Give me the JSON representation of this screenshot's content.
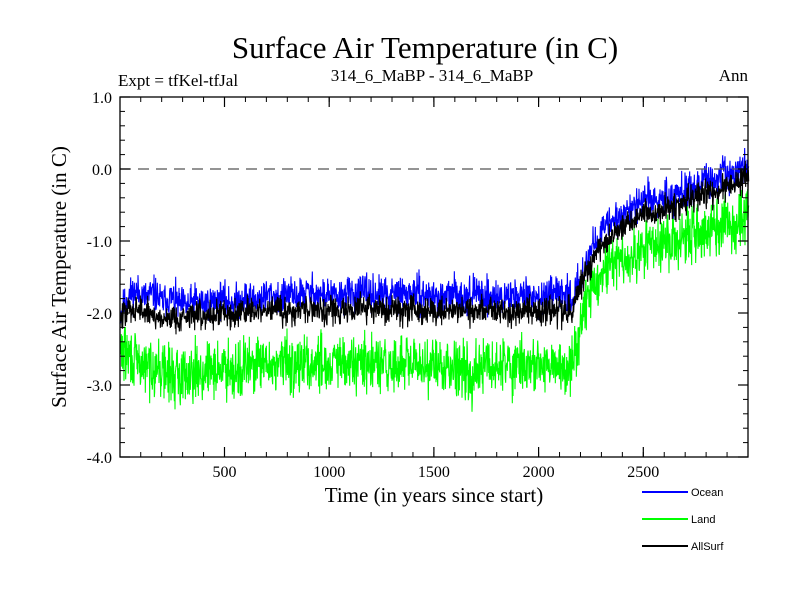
{
  "chart_data": {
    "type": "line",
    "title": "Surface Air Temperature (in C)",
    "header_left": "Expt = tfKel-tfJal",
    "header_center": "314_6_MaBP - 314_6_MaBP",
    "header_right": "Ann",
    "xlabel": "Time (in years since start)",
    "ylabel": "Surface Air Temperature (in C)",
    "xlim": [
      1,
      3000
    ],
    "ylim": [
      -4.0,
      1.0
    ],
    "xticks": [
      500,
      1000,
      1500,
      2000,
      2500
    ],
    "xtick_labels": [
      "500",
      "1000",
      "1500",
      "2000",
      "2500"
    ],
    "yticks": [
      -4.0,
      -3.0,
      -2.0,
      -1.0,
      0.0,
      1.0
    ],
    "ytick_labels": [
      "-4.0",
      "-3.0",
      "-2.0",
      "-1.0",
      "0.0",
      "1.0"
    ],
    "reference_line": 0.0,
    "grid": false,
    "legend_position": "bottom-right, below plot",
    "x_step": 40,
    "series": [
      {
        "name": "Ocean",
        "color": "#0000ff",
        "values": [
          -2.0,
          -1.75,
          -1.7,
          -1.78,
          -1.72,
          -1.85,
          -1.78,
          -1.88,
          -1.9,
          -1.82,
          -1.88,
          -1.85,
          -1.8,
          -1.86,
          -1.84,
          -1.78,
          -1.82,
          -1.78,
          -1.74,
          -1.8,
          -1.75,
          -1.77,
          -1.72,
          -1.7,
          -1.76,
          -1.74,
          -1.8,
          -1.72,
          -1.76,
          -1.7,
          -1.75,
          -1.73,
          -1.78,
          -1.72,
          -1.74,
          -1.7,
          -1.76,
          -1.75,
          -1.8,
          -1.78,
          -1.72,
          -1.76,
          -1.74,
          -1.72,
          -1.76,
          -1.78,
          -1.8,
          -1.74,
          -1.76,
          -1.75,
          -1.78,
          -1.8,
          -1.76,
          -1.7,
          -1.8,
          -1.48,
          -1.2,
          -0.92,
          -0.82,
          -0.7,
          -0.62,
          -0.55,
          -0.48,
          -0.4,
          -0.45,
          -0.35,
          -0.38,
          -0.3,
          -0.25,
          -0.22,
          -0.18,
          -0.15,
          -0.1,
          -0.05,
          -0.02,
          0.05
        ]
      },
      {
        "name": "Land",
        "color": "#00ff00",
        "values": [
          -2.5,
          -2.6,
          -2.7,
          -2.75,
          -2.72,
          -2.8,
          -2.85,
          -2.9,
          -2.8,
          -2.78,
          -2.85,
          -2.75,
          -2.8,
          -2.72,
          -2.8,
          -2.75,
          -2.7,
          -2.75,
          -2.72,
          -2.7,
          -2.68,
          -2.75,
          -2.7,
          -2.72,
          -2.65,
          -2.72,
          -2.7,
          -2.75,
          -2.68,
          -2.72,
          -2.75,
          -2.7,
          -2.78,
          -2.72,
          -2.7,
          -2.75,
          -2.72,
          -2.7,
          -2.78,
          -2.72,
          -2.7,
          -2.75,
          -2.85,
          -2.78,
          -2.72,
          -2.75,
          -2.7,
          -2.72,
          -2.7,
          -2.75,
          -2.72,
          -2.78,
          -2.75,
          -2.8,
          -2.7,
          -2.05,
          -1.7,
          -1.55,
          -1.4,
          -1.32,
          -1.3,
          -1.25,
          -1.18,
          -1.12,
          -1.1,
          -1.0,
          -1.05,
          -0.95,
          -0.92,
          -0.9,
          -0.85,
          -0.82,
          -0.8,
          -0.75,
          -0.7,
          -0.62
        ]
      },
      {
        "name": "AllSurf",
        "color": "#000000",
        "values": [
          -2.1,
          -1.95,
          -1.92,
          -2.0,
          -2.02,
          -2.1,
          -2.05,
          -2.08,
          -2.05,
          -2.0,
          -2.05,
          -2.02,
          -1.98,
          -2.02,
          -2.0,
          -1.96,
          -2.0,
          -1.98,
          -1.95,
          -1.98,
          -1.96,
          -1.98,
          -1.93,
          -1.92,
          -1.96,
          -1.95,
          -1.98,
          -1.94,
          -1.96,
          -1.92,
          -1.95,
          -1.94,
          -1.98,
          -1.94,
          -1.95,
          -1.92,
          -1.96,
          -1.95,
          -1.98,
          -1.96,
          -1.94,
          -1.96,
          -1.98,
          -1.95,
          -1.96,
          -1.98,
          -1.98,
          -1.95,
          -1.96,
          -1.96,
          -1.98,
          -2.0,
          -1.96,
          -1.98,
          -1.95,
          -1.6,
          -1.35,
          -1.12,
          -1.0,
          -0.9,
          -0.82,
          -0.75,
          -0.68,
          -0.6,
          -0.62,
          -0.52,
          -0.55,
          -0.48,
          -0.42,
          -0.4,
          -0.35,
          -0.32,
          -0.28,
          -0.22,
          -0.18,
          -0.1
        ]
      }
    ]
  }
}
